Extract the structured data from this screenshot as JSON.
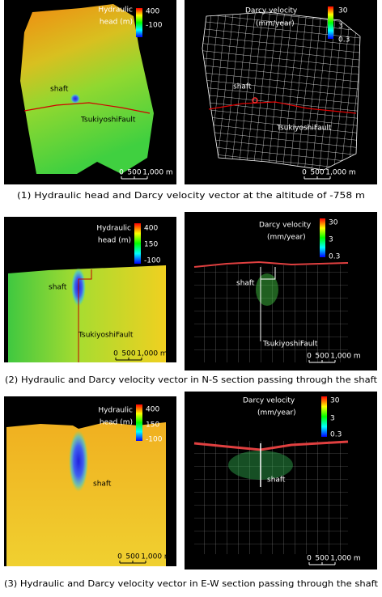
{
  "rows": [
    {
      "caption": "(1) Hydraulic head and Darcy velocity vector at the altitude of -758 m",
      "head_panel": {
        "legend_title": [
          "Hydraulic",
          "head (m)"
        ],
        "legend_values": [
          "400",
          "-100"
        ],
        "labels": [
          "shaft",
          "TsukiyoshiFault"
        ],
        "scale": [
          "0",
          "500",
          "1,000 m"
        ]
      },
      "velocity_panel": {
        "legend_title": [
          "Darcy velocity",
          "(mm/year)"
        ],
        "legend_values": [
          "30",
          "3",
          "0.3"
        ],
        "labels": [
          "shaft",
          "TsukiyoshiFault"
        ],
        "scale": [
          "0",
          "500",
          "1,000 m"
        ]
      }
    },
    {
      "caption": "(2) Hydraulic and Darcy velocity vector in N-S section passing through the shaft",
      "head_panel": {
        "legend_title": [
          "Hydraulic",
          "head (m)"
        ],
        "legend_values": [
          "400",
          "150",
          "-100"
        ],
        "labels": [
          "shaft",
          "TsukiyoshiFault"
        ],
        "scale": [
          "0",
          "500",
          "1,000 m"
        ]
      },
      "velocity_panel": {
        "legend_title": [
          "Darcy velocity",
          "(mm/year)"
        ],
        "legend_values": [
          "30",
          "3",
          "0.3"
        ],
        "labels": [
          "shaft",
          "TsukiyoshiFault"
        ],
        "scale": [
          "0",
          "500",
          "1,000 m"
        ]
      }
    },
    {
      "caption": "(3) Hydraulic and Darcy velocity vector in E-W section passing through the shaft",
      "head_panel": {
        "legend_title": [
          "Hydraulic",
          "head (m)"
        ],
        "legend_values": [
          "400",
          "150",
          "-100"
        ],
        "labels": [
          "shaft"
        ],
        "scale": [
          "0",
          "500",
          "1,000 m"
        ]
      },
      "velocity_panel": {
        "legend_title": [
          "Darcy velocity",
          "(mm/year)"
        ],
        "legend_values": [
          "30",
          "3",
          "0.3"
        ],
        "labels": [
          "shaft"
        ],
        "scale": [
          "0",
          "500",
          "1,000 m"
        ]
      }
    }
  ]
}
